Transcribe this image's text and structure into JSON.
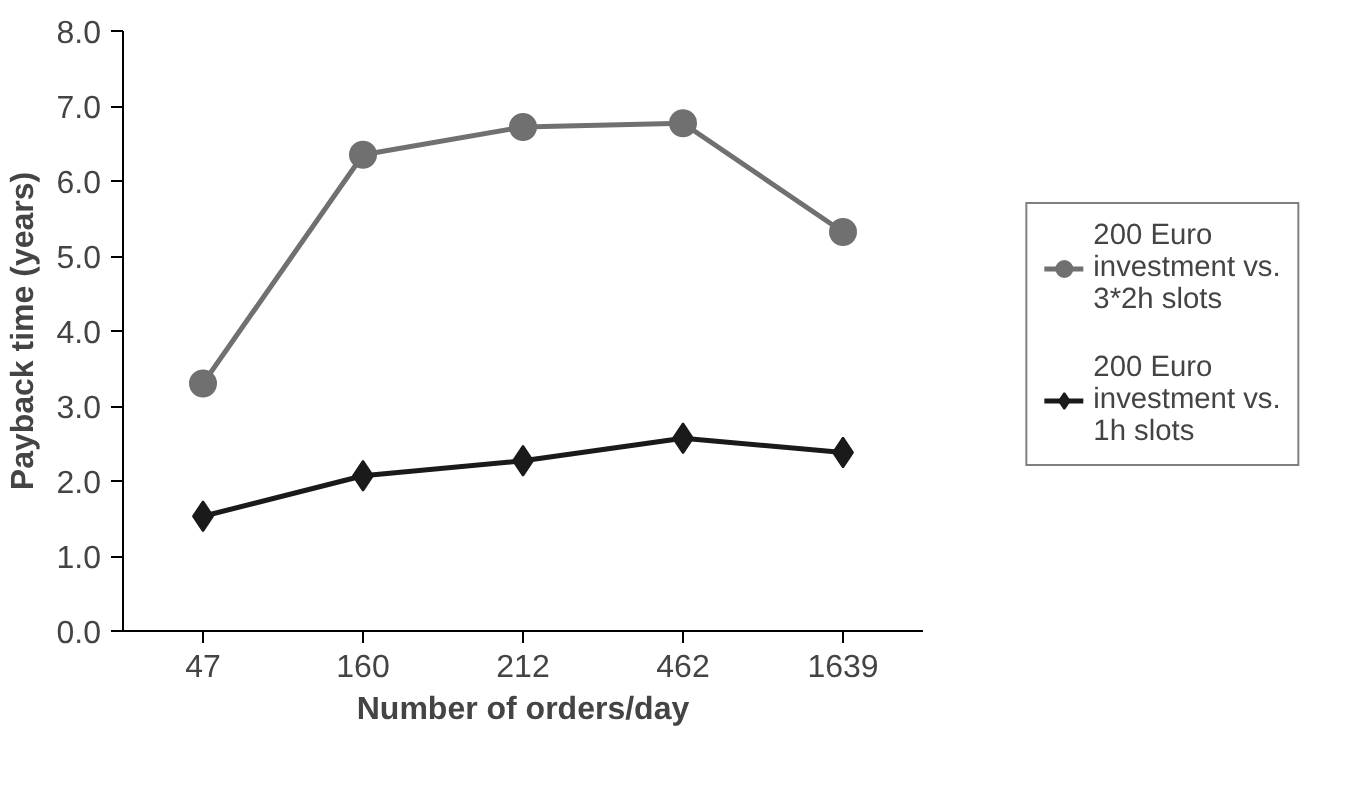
{
  "chart_data": {
    "type": "line",
    "xlabel": "Number of orders/day",
    "ylabel": "Payback time (years)",
    "categories": [
      "47",
      "160",
      "212",
      "462",
      "1639"
    ],
    "ylim": [
      0,
      8
    ],
    "yticks": [
      {
        "value": 0,
        "label": "0.0"
      },
      {
        "value": 1,
        "label": "1.0"
      },
      {
        "value": 2,
        "label": "2.0"
      },
      {
        "value": 3,
        "label": "3.0"
      },
      {
        "value": 4,
        "label": "4.0"
      },
      {
        "value": 5,
        "label": "5.0"
      },
      {
        "value": 6,
        "label": "6.0"
      },
      {
        "value": 7,
        "label": "7.0"
      },
      {
        "value": 8,
        "label": "8.0"
      }
    ],
    "series": [
      {
        "name": "200 Euro investment vs. 3*2h slots",
        "color": "#707070",
        "marker": "circle",
        "values": [
          3.3,
          6.35,
          6.72,
          6.77,
          5.32
        ]
      },
      {
        "name": "200 Euro investment vs. 1h slots",
        "color": "#1a1a1a",
        "marker": "diamond",
        "values": [
          1.53,
          2.07,
          2.27,
          2.57,
          2.38
        ]
      }
    ],
    "legend": "right"
  }
}
